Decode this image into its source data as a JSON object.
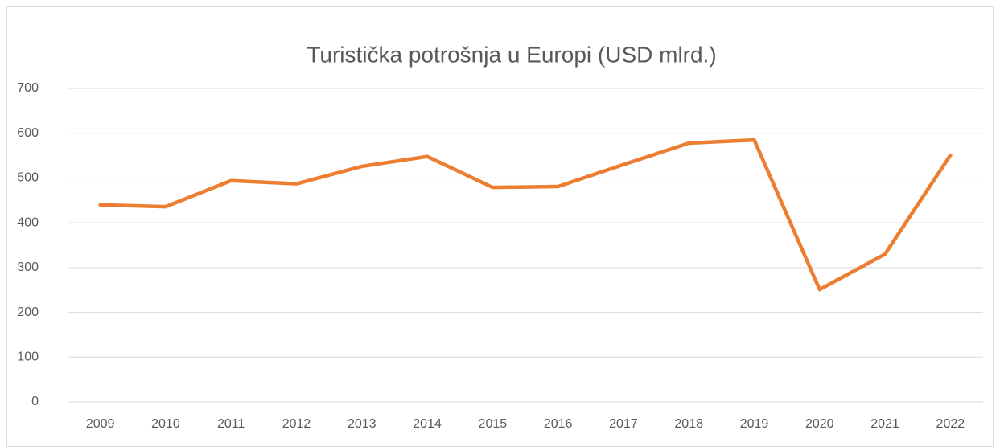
{
  "chart_data": {
    "type": "line",
    "title": "Turistička potrošnja u Europi (USD mlrd.)",
    "categories": [
      "2009",
      "2010",
      "2011",
      "2012",
      "2013",
      "2014",
      "2015",
      "2016",
      "2017",
      "2018",
      "2019",
      "2020",
      "2021",
      "2022"
    ],
    "values": [
      440,
      436,
      494,
      487,
      526,
      548,
      479,
      481,
      530,
      578,
      585,
      251,
      330,
      551
    ],
    "color": "#ed7d31",
    "ylim": [
      0,
      700
    ],
    "yticks": [
      0,
      100,
      200,
      300,
      400,
      500,
      600,
      700
    ],
    "grid": true
  }
}
